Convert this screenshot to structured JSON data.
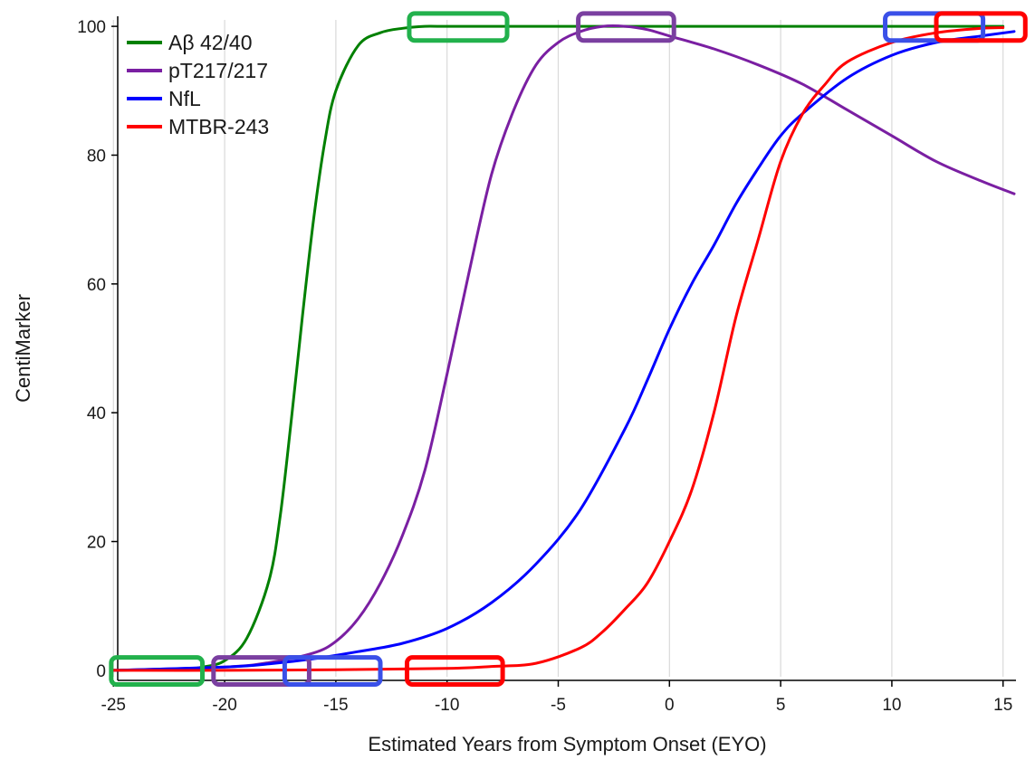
{
  "chart_data": {
    "type": "line",
    "title": "",
    "xlabel": "Estimated Years from Symptom Onset (EYO)",
    "ylabel": "CentiMarker",
    "xlim": [
      -25.5,
      15.5
    ],
    "ylim": [
      -1,
      101
    ],
    "x_ticks": [
      -25,
      -20,
      -15,
      -10,
      -5,
      0,
      5,
      10,
      15
    ],
    "y_ticks": [
      0,
      20,
      40,
      60,
      80,
      100
    ],
    "grid": "vertical gridlines at x ticks",
    "legend_position": "top-left",
    "series": [
      {
        "name": "Aβ 42/40",
        "color": "#008000",
        "x": [
          -25,
          -22,
          -21,
          -20,
          -19,
          -18,
          -17.5,
          -17,
          -16.5,
          -16,
          -15.5,
          -15,
          -14,
          -13,
          -12,
          -11,
          -10,
          -5,
          0,
          5,
          10,
          15
        ],
        "y": [
          0,
          0.2,
          0.5,
          1.5,
          5,
          14,
          24,
          39,
          55,
          70,
          82,
          90,
          97,
          99,
          99.7,
          100,
          100,
          100,
          100,
          100,
          100,
          100
        ]
      },
      {
        "name": "pT217/217",
        "color": "#7a1fa2",
        "x": [
          -25,
          -20,
          -18,
          -16,
          -15,
          -14,
          -13,
          -12,
          -11,
          -10,
          -9,
          -8,
          -7,
          -6,
          -5,
          -4,
          -3,
          -2,
          -1,
          0,
          2,
          4,
          6,
          8,
          10,
          12,
          14,
          15.5
        ],
        "y": [
          0,
          0.5,
          1.2,
          2.7,
          4.5,
          8,
          13.5,
          21,
          31,
          46,
          62,
          77,
          87,
          94,
          97.5,
          99.2,
          100,
          100,
          99.5,
          98.5,
          96.5,
          94,
          91,
          87,
          83,
          79,
          76,
          74
        ]
      },
      {
        "name": "NfL",
        "color": "#0000ff",
        "x": [
          -25,
          -20,
          -18,
          -16,
          -14,
          -12,
          -10,
          -8,
          -6,
          -4,
          -2,
          -1,
          0,
          1,
          2,
          3,
          4,
          5,
          6,
          8,
          10,
          12,
          14,
          15.5
        ],
        "y": [
          0,
          0.5,
          1,
          1.8,
          2.9,
          4.2,
          6.5,
          10.5,
          16.5,
          25,
          37.5,
          45,
          53,
          60,
          66,
          72.5,
          78,
          83,
          86.5,
          92,
          95.5,
          97.5,
          98.5,
          99.2
        ]
      },
      {
        "name": "MTBR-243",
        "color": "#ff0000",
        "x": [
          -25,
          -20,
          -15,
          -10,
          -8,
          -6,
          -4,
          -3,
          -2,
          -1,
          0,
          1,
          2,
          3,
          4,
          5,
          6,
          7,
          8,
          10,
          12,
          14,
          15
        ],
        "y": [
          0,
          0,
          0.1,
          0.3,
          0.6,
          1.1,
          3.5,
          6,
          9.5,
          13.5,
          20,
          28,
          40,
          55,
          67,
          79,
          86.5,
          91,
          94.5,
          97.5,
          99,
          99.7,
          99.8
        ]
      }
    ],
    "annotations": [
      {
        "shape": "rounded-rect",
        "color": "#22b14c",
        "x": [
          -25.1,
          -21
        ],
        "y": [
          -2.2,
          2
        ]
      },
      {
        "shape": "rounded-rect",
        "color": "#7a3fa0",
        "x": [
          -20.5,
          -16.2
        ],
        "y": [
          -2.2,
          2
        ]
      },
      {
        "shape": "rounded-rect",
        "color": "#3a50e8",
        "x": [
          -17.3,
          -13
        ],
        "y": [
          -2.2,
          2
        ]
      },
      {
        "shape": "rounded-rect",
        "color": "#ff0000",
        "x": [
          -11.8,
          -7.5
        ],
        "y": [
          -2.2,
          2
        ]
      },
      {
        "shape": "rounded-rect",
        "color": "#22b14c",
        "x": [
          -11.7,
          -7.3
        ],
        "y": [
          97.8,
          102
        ]
      },
      {
        "shape": "rounded-rect",
        "color": "#7a3fa0",
        "x": [
          -4.1,
          0.2
        ],
        "y": [
          97.8,
          102
        ]
      },
      {
        "shape": "rounded-rect",
        "color": "#3a50e8",
        "x": [
          9.7,
          14.1
        ],
        "y": [
          97.8,
          102
        ]
      },
      {
        "shape": "rounded-rect",
        "color": "#ff0000",
        "x": [
          12,
          16
        ],
        "y": [
          97.8,
          102
        ]
      }
    ]
  }
}
